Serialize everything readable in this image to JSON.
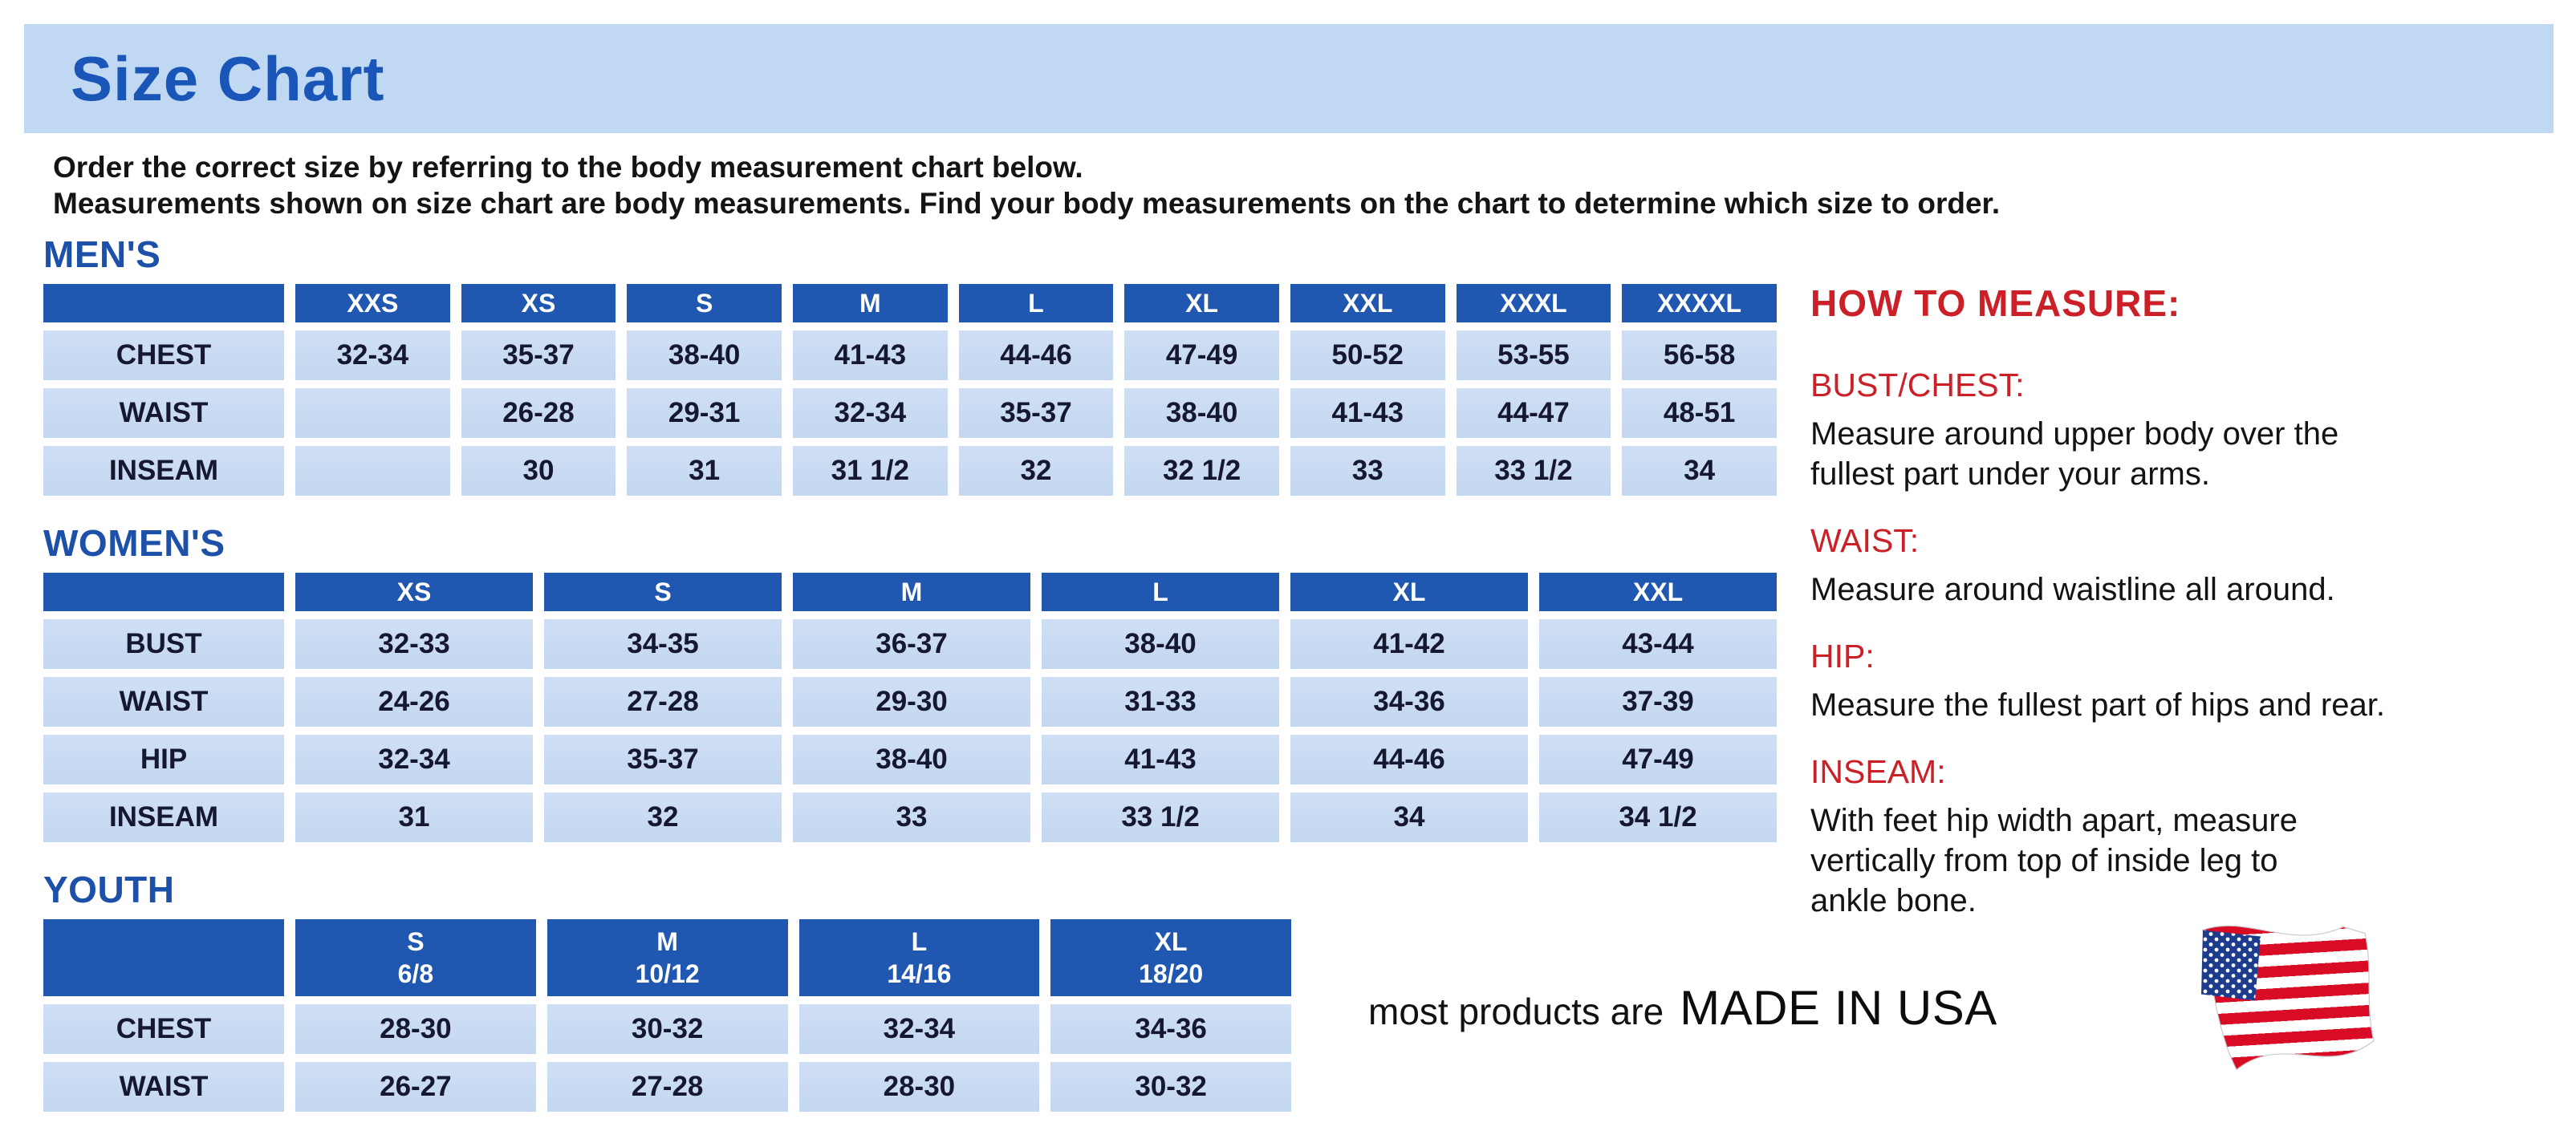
{
  "page": {
    "title": "Size Chart",
    "intro_lines": [
      "Order the correct size by referring to the body measurement chart below.",
      "Measurements shown on size chart are body measurements.  Find your body measurements on the chart to determine which size to order."
    ]
  },
  "colors": {
    "banner_bg": "#c1d8f2",
    "title_blue": "#1956b8",
    "section_heading_blue": "#1c50a9",
    "table_header_bg": "#2057b0",
    "table_cell_bg": "#c6d9f1",
    "measure_red": "#cb2027",
    "flag_red": "#d80c25",
    "flag_blue": "#1e3c8c"
  },
  "tables": [
    {
      "id": "mens",
      "heading": "MEN'S",
      "columns": [
        [
          "XXS"
        ],
        [
          "XS"
        ],
        [
          "S"
        ],
        [
          "M"
        ],
        [
          "L"
        ],
        [
          "XL"
        ],
        [
          "XXL"
        ],
        [
          "XXXL"
        ],
        [
          "XXXXL"
        ]
      ],
      "rows": [
        {
          "label": "CHEST",
          "values": [
            "32-34",
            "35-37",
            "38-40",
            "41-43",
            "44-46",
            "47-49",
            "50-52",
            "53-55",
            "56-58"
          ]
        },
        {
          "label": "WAIST",
          "values": [
            "",
            "26-28",
            "29-31",
            "32-34",
            "35-37",
            "38-40",
            "41-43",
            "44-47",
            "48-51"
          ]
        },
        {
          "label": "INSEAM",
          "values": [
            "",
            "30",
            "31",
            "31 1/2",
            "32",
            "32 1/2",
            "33",
            "33 1/2",
            "34"
          ]
        }
      ]
    },
    {
      "id": "womens",
      "heading": "WOMEN'S",
      "columns": [
        [
          "XS"
        ],
        [
          "S"
        ],
        [
          "M"
        ],
        [
          "L"
        ],
        [
          "XL"
        ],
        [
          "XXL"
        ]
      ],
      "rows": [
        {
          "label": "BUST",
          "values": [
            "32-33",
            "34-35",
            "36-37",
            "38-40",
            "41-42",
            "43-44"
          ]
        },
        {
          "label": "WAIST",
          "values": [
            "24-26",
            "27-28",
            "29-30",
            "31-33",
            "34-36",
            "37-39"
          ]
        },
        {
          "label": "HIP",
          "values": [
            "32-34",
            "35-37",
            "38-40",
            "41-43",
            "44-46",
            "47-49"
          ]
        },
        {
          "label": "INSEAM",
          "values": [
            "31",
            "32",
            "33",
            "33 1/2",
            "34",
            "34 1/2"
          ]
        }
      ]
    },
    {
      "id": "youth",
      "heading": "YOUTH",
      "columns": [
        [
          "S",
          "6/8"
        ],
        [
          "M",
          "10/12"
        ],
        [
          "L",
          "14/16"
        ],
        [
          "XL",
          "18/20"
        ]
      ],
      "rows": [
        {
          "label": "CHEST",
          "values": [
            "28-30",
            "30-32",
            "32-34",
            "34-36"
          ]
        },
        {
          "label": "WAIST",
          "values": [
            "26-27",
            "27-28",
            "28-30",
            "30-32"
          ]
        }
      ]
    }
  ],
  "how_to_measure": {
    "title": "HOW TO MEASURE:",
    "sections": [
      {
        "label": "BUST/CHEST:",
        "lines": [
          "Measure around upper body over the",
          "fullest part under your arms."
        ]
      },
      {
        "label": "WAIST:",
        "lines": [
          "Measure around waistline all around."
        ]
      },
      {
        "label": "HIP:",
        "lines": [
          "Measure the fullest part of hips and rear."
        ]
      },
      {
        "label": "INSEAM:",
        "lines": [
          "With feet hip width apart, measure",
          "vertically from top of inside leg to",
          "ankle bone."
        ]
      }
    ]
  },
  "footer": {
    "prefix": "most products are",
    "made_in": "MADE IN USA",
    "flag_icon": "us-flag-icon"
  }
}
